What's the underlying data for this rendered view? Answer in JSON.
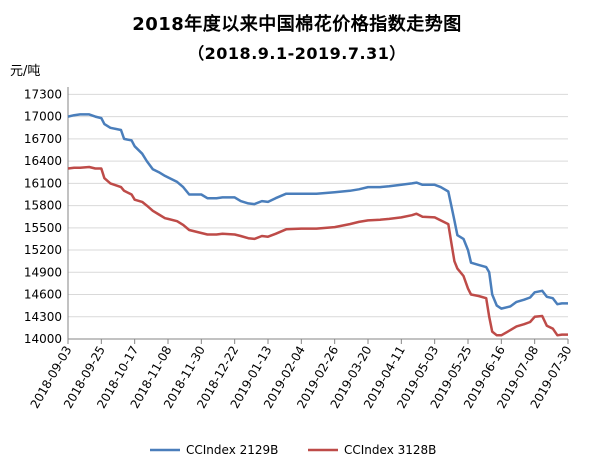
{
  "chart_data": {
    "type": "line",
    "title": "2018年度以来中国棉花价格指数走势图",
    "subtitle": "（2018.9.1-2019.7.31）",
    "ylabel": "元/吨",
    "xlabel": "",
    "ylim": [
      14000,
      17400
    ],
    "yticks": [
      14000,
      14300,
      14600,
      14900,
      15200,
      15500,
      15800,
      16100,
      16400,
      16700,
      17000,
      17300
    ],
    "grid": "horizontal",
    "legend_position": "bottom",
    "x_ticks": [
      "2018-09-03",
      "2018-09-25",
      "2018-10-17",
      "2018-11-08",
      "2018-11-30",
      "2018-12-22",
      "2019-01-13",
      "2019-02-04",
      "2019-02-26",
      "2019-03-20",
      "2019-04-11",
      "2019-05-03",
      "2019-05-25",
      "2019-06-16",
      "2019-07-08",
      "2019-07-30"
    ],
    "series": [
      {
        "name": "CCIndex 2129B",
        "color": "#4a7ebb",
        "points": [
          [
            "2018-09-03",
            17000
          ],
          [
            "2018-09-07",
            17020
          ],
          [
            "2018-09-11",
            17030
          ],
          [
            "2018-09-17",
            17030
          ],
          [
            "2018-09-21",
            17000
          ],
          [
            "2018-09-25",
            16980
          ],
          [
            "2018-09-27",
            16900
          ],
          [
            "2018-10-01",
            16850
          ],
          [
            "2018-10-08",
            16820
          ],
          [
            "2018-10-10",
            16700
          ],
          [
            "2018-10-15",
            16680
          ],
          [
            "2018-10-17",
            16600
          ],
          [
            "2018-10-22",
            16500
          ],
          [
            "2018-10-25",
            16400
          ],
          [
            "2018-10-29",
            16290
          ],
          [
            "2018-11-02",
            16250
          ],
          [
            "2018-11-06",
            16200
          ],
          [
            "2018-11-08",
            16180
          ],
          [
            "2018-11-14",
            16120
          ],
          [
            "2018-11-18",
            16050
          ],
          [
            "2018-11-22",
            15950
          ],
          [
            "2018-11-30",
            15950
          ],
          [
            "2018-12-04",
            15900
          ],
          [
            "2018-12-10",
            15900
          ],
          [
            "2018-12-14",
            15910
          ],
          [
            "2018-12-22",
            15910
          ],
          [
            "2018-12-26",
            15860
          ],
          [
            "2018-12-31",
            15830
          ],
          [
            "2019-01-04",
            15820
          ],
          [
            "2019-01-09",
            15860
          ],
          [
            "2019-01-13",
            15850
          ],
          [
            "2019-01-18",
            15900
          ],
          [
            "2019-01-25",
            15960
          ],
          [
            "2019-02-04",
            15960
          ],
          [
            "2019-02-14",
            15960
          ],
          [
            "2019-02-26",
            15980
          ],
          [
            "2019-03-08",
            16000
          ],
          [
            "2019-03-14",
            16020
          ],
          [
            "2019-03-20",
            16050
          ],
          [
            "2019-03-28",
            16050
          ],
          [
            "2019-04-03",
            16060
          ],
          [
            "2019-04-11",
            16080
          ],
          [
            "2019-04-18",
            16100
          ],
          [
            "2019-04-21",
            16110
          ],
          [
            "2019-04-25",
            16080
          ],
          [
            "2019-05-03",
            16080
          ],
          [
            "2019-05-07",
            16050
          ],
          [
            "2019-05-12",
            15990
          ],
          [
            "2019-05-14",
            15800
          ],
          [
            "2019-05-16",
            15600
          ],
          [
            "2019-05-18",
            15400
          ],
          [
            "2019-05-22",
            15350
          ],
          [
            "2019-05-25",
            15200
          ],
          [
            "2019-05-27",
            15030
          ],
          [
            "2019-06-01",
            15000
          ],
          [
            "2019-06-06",
            14970
          ],
          [
            "2019-06-08",
            14900
          ],
          [
            "2019-06-10",
            14600
          ],
          [
            "2019-06-13",
            14450
          ],
          [
            "2019-06-16",
            14410
          ],
          [
            "2019-06-22",
            14440
          ],
          [
            "2019-06-26",
            14500
          ],
          [
            "2019-07-01",
            14530
          ],
          [
            "2019-07-05",
            14560
          ],
          [
            "2019-07-08",
            14630
          ],
          [
            "2019-07-13",
            14650
          ],
          [
            "2019-07-16",
            14570
          ],
          [
            "2019-07-20",
            14550
          ],
          [
            "2019-07-23",
            14470
          ],
          [
            "2019-07-26",
            14480
          ],
          [
            "2019-07-30",
            14480
          ]
        ]
      },
      {
        "name": "CCIndex 3128B",
        "color": "#be4b48",
        "points": [
          [
            "2018-09-03",
            16300
          ],
          [
            "2018-09-07",
            16310
          ],
          [
            "2018-09-11",
            16310
          ],
          [
            "2018-09-17",
            16320
          ],
          [
            "2018-09-21",
            16300
          ],
          [
            "2018-09-25",
            16300
          ],
          [
            "2018-09-27",
            16170
          ],
          [
            "2018-10-01",
            16100
          ],
          [
            "2018-10-08",
            16050
          ],
          [
            "2018-10-10",
            16000
          ],
          [
            "2018-10-15",
            15950
          ],
          [
            "2018-10-17",
            15880
          ],
          [
            "2018-10-22",
            15850
          ],
          [
            "2018-10-25",
            15800
          ],
          [
            "2018-10-29",
            15730
          ],
          [
            "2018-11-02",
            15680
          ],
          [
            "2018-11-06",
            15630
          ],
          [
            "2018-11-08",
            15620
          ],
          [
            "2018-11-14",
            15590
          ],
          [
            "2018-11-18",
            15540
          ],
          [
            "2018-11-22",
            15470
          ],
          [
            "2018-11-30",
            15430
          ],
          [
            "2018-12-04",
            15410
          ],
          [
            "2018-12-10",
            15410
          ],
          [
            "2018-12-14",
            15420
          ],
          [
            "2018-12-22",
            15410
          ],
          [
            "2018-12-26",
            15390
          ],
          [
            "2018-12-31",
            15360
          ],
          [
            "2019-01-04",
            15350
          ],
          [
            "2019-01-09",
            15390
          ],
          [
            "2019-01-13",
            15380
          ],
          [
            "2019-01-18",
            15420
          ],
          [
            "2019-01-25",
            15480
          ],
          [
            "2019-02-04",
            15490
          ],
          [
            "2019-02-14",
            15490
          ],
          [
            "2019-02-26",
            15510
          ],
          [
            "2019-03-08",
            15550
          ],
          [
            "2019-03-14",
            15580
          ],
          [
            "2019-03-20",
            15600
          ],
          [
            "2019-03-28",
            15610
          ],
          [
            "2019-04-03",
            15620
          ],
          [
            "2019-04-11",
            15640
          ],
          [
            "2019-04-18",
            15670
          ],
          [
            "2019-04-21",
            15690
          ],
          [
            "2019-04-25",
            15650
          ],
          [
            "2019-05-03",
            15640
          ],
          [
            "2019-05-07",
            15600
          ],
          [
            "2019-05-12",
            15550
          ],
          [
            "2019-05-14",
            15300
          ],
          [
            "2019-05-16",
            15050
          ],
          [
            "2019-05-18",
            14950
          ],
          [
            "2019-05-22",
            14850
          ],
          [
            "2019-05-25",
            14680
          ],
          [
            "2019-05-27",
            14600
          ],
          [
            "2019-06-01",
            14580
          ],
          [
            "2019-06-06",
            14550
          ],
          [
            "2019-06-08",
            14300
          ],
          [
            "2019-06-10",
            14100
          ],
          [
            "2019-06-13",
            14050
          ],
          [
            "2019-06-16",
            14050
          ],
          [
            "2019-06-22",
            14120
          ],
          [
            "2019-06-26",
            14170
          ],
          [
            "2019-07-01",
            14200
          ],
          [
            "2019-07-05",
            14230
          ],
          [
            "2019-07-08",
            14300
          ],
          [
            "2019-07-13",
            14310
          ],
          [
            "2019-07-16",
            14180
          ],
          [
            "2019-07-20",
            14140
          ],
          [
            "2019-07-23",
            14050
          ],
          [
            "2019-07-26",
            14060
          ],
          [
            "2019-07-30",
            14060
          ]
        ]
      }
    ]
  }
}
